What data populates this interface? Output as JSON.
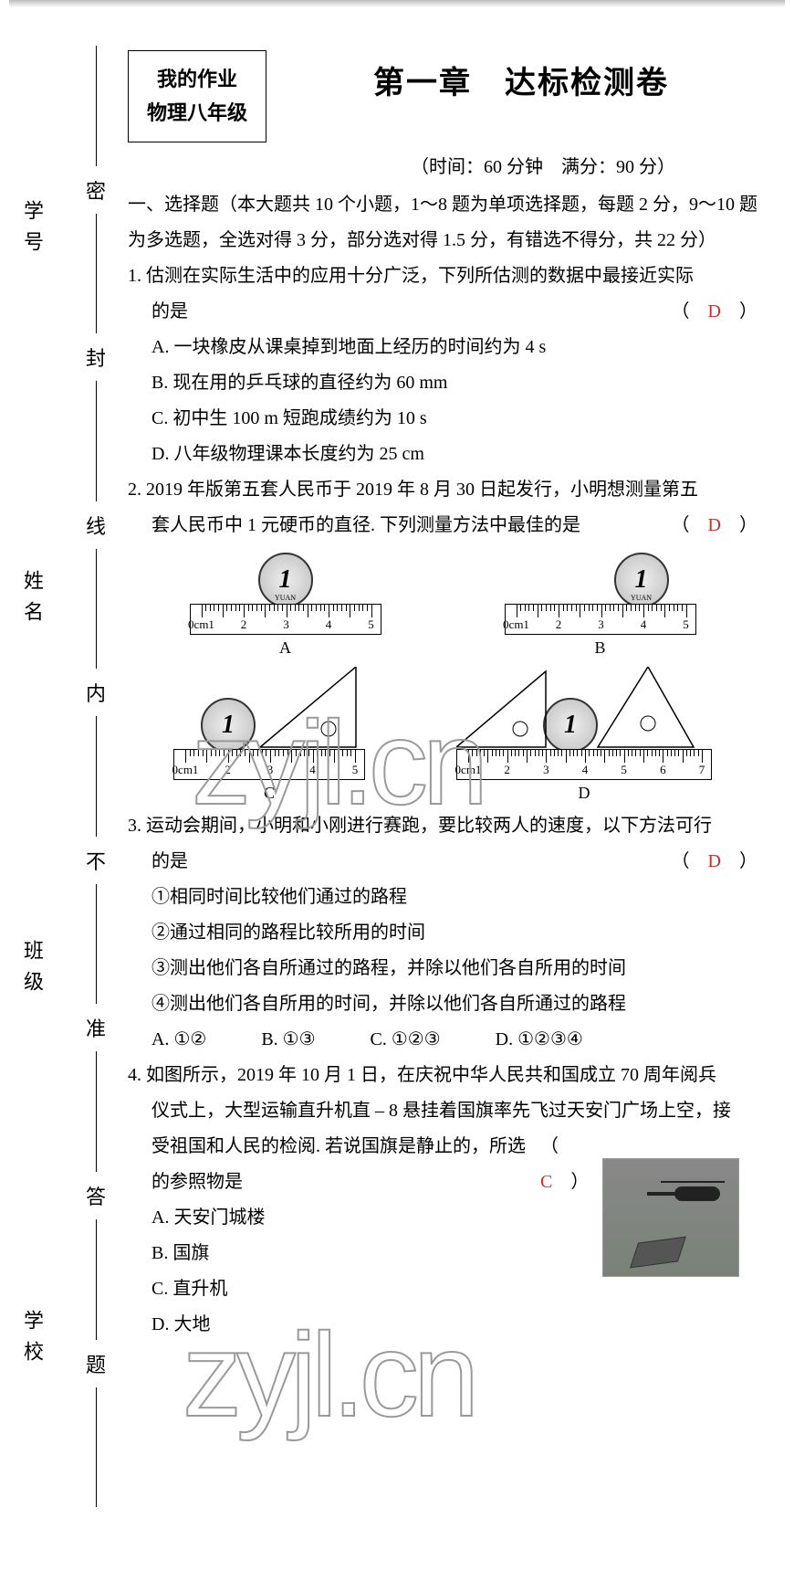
{
  "sidebar": {
    "labels": [
      "学号",
      "姓名",
      "班级",
      "学校"
    ]
  },
  "seal": {
    "chars": [
      "密",
      "封",
      "线",
      "内",
      "不",
      "准",
      "答",
      "题"
    ]
  },
  "header": {
    "box_line1": "我的作业",
    "box_line2": "物理八年级",
    "title": "第一章　达标检测卷",
    "subinfo": "（时间：60 分钟　满分：90 分）"
  },
  "section1": {
    "heading": "一、选择题（本大题共 10 个小题，1～8 题为单项选择题，每题 2 分，9～10 题为多选题，全选对得 3 分，部分选对得 1.5 分，有错选不得分，共 22 分）"
  },
  "q1": {
    "stem1": "1. 估测在实际生活中的应用十分广泛，下列所估测的数据中最接近实际",
    "stem2": "的是",
    "answer": "D",
    "A": "A. 一块橡皮从课桌掉到地面上经历的时间约为 4 s",
    "B": "B. 现在用的乒乓球的直径约为 60 mm",
    "C": "C. 初中生 100 m 短跑成绩约为 10 s",
    "D": "D. 八年级物理课本长度约为 25 cm"
  },
  "q2": {
    "stem1": "2. 2019 年版第五套人民币于 2019 年 8 月 30 日起发行，小明想测量第五",
    "stem2": "套人民币中 1 元硬币的直径. 下列测量方法中最佳的是",
    "answer": "D",
    "labels": {
      "A": "A",
      "B": "B",
      "C": "C",
      "D": "D"
    },
    "coin_text": "1",
    "coin_sub": "YUAN",
    "ruler_labels": [
      "0cm1",
      "2",
      "3",
      "4",
      "5"
    ],
    "ruler_labels_long": [
      "0cm1",
      "2",
      "3",
      "4",
      "5",
      "6",
      "7"
    ]
  },
  "q3": {
    "stem1": "3. 运动会期间，小明和小刚进行赛跑，要比较两人的速度，以下方法可行",
    "stem2": "的是",
    "answer": "D",
    "l1": "①相同时间比较他们通过的路程",
    "l2": "②通过相同的路程比较所用的时间",
    "l3": "③测出他们各自所通过的路程，并除以他们各自所用的时间",
    "l4": "④测出他们各自所用的时间，并除以他们各自所通过的路程",
    "A": "A. ①②",
    "B": "B. ①③",
    "C": "C. ①②③",
    "D": "D. ①②③④"
  },
  "q4": {
    "stem1": "4. 如图所示，2019 年 10 月 1 日，在庆祝中华人民共和国成立 70 周年阅兵",
    "stem2": "仪式上，大型运输直升机直 – 8 悬挂着国旗率先飞过天安门广场上空，接",
    "stem3": "受祖国和人民的检阅. 若说国旗是静止的，所选的参照物是",
    "answer": "C",
    "A": "A. 天安门城楼",
    "B": "B. 国旗",
    "C": "C. 直升机",
    "D": "D. 大地"
  },
  "watermark": "zyjl.cn",
  "colors": {
    "answer": "#c9302c",
    "text": "#000000",
    "background": "#ffffff"
  }
}
